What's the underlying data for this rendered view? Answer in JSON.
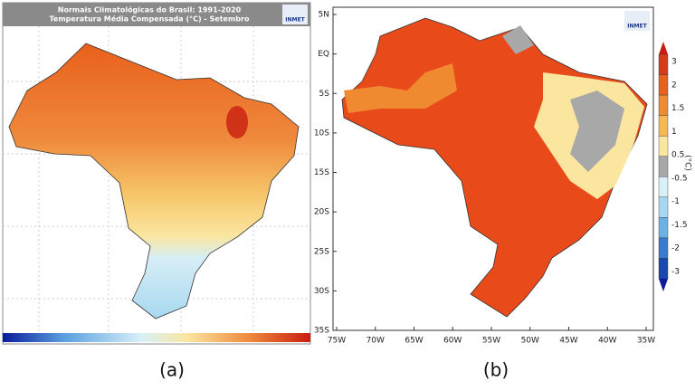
{
  "panel_a": {
    "title_line1": "Normais Climatológicas do Brasil: 1991-2020",
    "title_line2": "Temperatura Média Compensada (°C) - Setembro",
    "logo": "INMET",
    "caption": "(a)"
  },
  "panel_b": {
    "logo": "INMET",
    "lat_labels": [
      "5N",
      "EQ",
      "5S",
      "10S",
      "15S",
      "20S",
      "25S",
      "30S",
      "35S"
    ],
    "lon_labels": [
      "75W",
      "70W",
      "65W",
      "60W",
      "55W",
      "50W",
      "45W",
      "40W",
      "35W"
    ],
    "colorbar_labels": [
      "3",
      "2",
      "1.5",
      "1",
      "0.5",
      "-0.5",
      "-1",
      "-1.5",
      "-2",
      "-3"
    ],
    "colorbar_unit": "(°C)",
    "caption": "(b)"
  }
}
